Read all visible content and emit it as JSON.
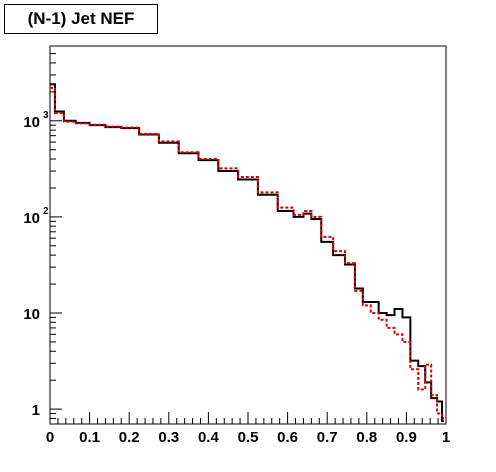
{
  "chart_data": {
    "type": "line",
    "title": "(N-1) Jet NEF",
    "xlabel": "",
    "ylabel": "",
    "xlim": [
      0,
      1
    ],
    "ylim": [
      0.7,
      6000
    ],
    "yscale": "log",
    "grid": false,
    "x_ticks": [
      "0",
      "0.1",
      "0.2",
      "0.3",
      "0.4",
      "0.5",
      "0.6",
      "0.7",
      "0.8",
      "0.9",
      "1"
    ],
    "y_ticks": [
      {
        "value": 1,
        "base": "1",
        "exp": ""
      },
      {
        "value": 10,
        "base": "10",
        "exp": ""
      },
      {
        "value": 100,
        "base": "10",
        "exp": "2"
      },
      {
        "value": 1000,
        "base": "10",
        "exp": "3"
      }
    ],
    "series": [
      {
        "color": "#000000",
        "style": "solid",
        "x": [
          0.005,
          0.02,
          0.05,
          0.08,
          0.12,
          0.16,
          0.2,
          0.25,
          0.3,
          0.35,
          0.4,
          0.45,
          0.5,
          0.55,
          0.6,
          0.63,
          0.65,
          0.67,
          0.7,
          0.73,
          0.76,
          0.78,
          0.8,
          0.82,
          0.84,
          0.86,
          0.88,
          0.9,
          0.92,
          0.94,
          0.955,
          0.97,
          0.985,
          0.995
        ],
        "y": [
          2400,
          1250,
          1000,
          950,
          900,
          860,
          840,
          720,
          590,
          460,
          390,
          300,
          245,
          170,
          115,
          100,
          108,
          95,
          55,
          40,
          32,
          18,
          13,
          13,
          10,
          9.5,
          11,
          9,
          3.2,
          2.8,
          1.9,
          1.3,
          1.2,
          0.75
        ]
      },
      {
        "color": "#dd0000",
        "style": "dotted",
        "x": [
          0.005,
          0.02,
          0.05,
          0.08,
          0.12,
          0.16,
          0.2,
          0.25,
          0.3,
          0.35,
          0.4,
          0.45,
          0.5,
          0.55,
          0.6,
          0.63,
          0.65,
          0.67,
          0.7,
          0.73,
          0.76,
          0.78,
          0.8,
          0.82,
          0.84,
          0.86,
          0.88,
          0.9,
          0.92,
          0.94,
          0.955,
          0.97,
          0.985,
          0.995
        ],
        "y": [
          2200,
          1200,
          980,
          940,
          910,
          870,
          850,
          730,
          610,
          470,
          400,
          320,
          260,
          180,
          125,
          105,
          115,
          100,
          62,
          44,
          33,
          17,
          12,
          10,
          8.5,
          7,
          6,
          5,
          2.6,
          1.6,
          2.9,
          1.4,
          0.9,
          0.8
        ]
      }
    ]
  }
}
